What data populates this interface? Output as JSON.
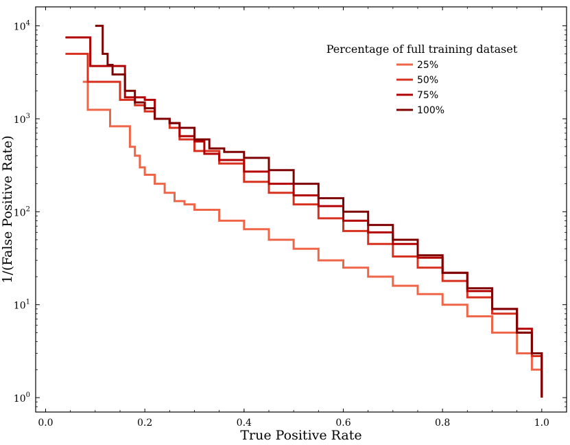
{
  "chart_data": {
    "type": "line",
    "title": "",
    "xlabel": "True Positive Rate",
    "ylabel": "1/(False Positive Rate)",
    "xlim": [
      -0.02,
      1.05
    ],
    "ylim": [
      0.7,
      16000
    ],
    "yscale": "log",
    "grid": false,
    "legend_title": "Percentage of full training dataset",
    "legend_position": "upper-right",
    "x_ticks": [
      0.0,
      0.2,
      0.4,
      0.6,
      0.8,
      1.0
    ],
    "x_tick_labels": [
      "0.0",
      "0.2",
      "0.4",
      "0.6",
      "0.8",
      "1.0"
    ],
    "y_ticks": [
      1,
      10,
      100,
      1000,
      10000
    ],
    "y_tick_labels": [
      {
        "base": "10",
        "exp": "0"
      },
      {
        "base": "10",
        "exp": "1"
      },
      {
        "base": "10",
        "exp": "2"
      },
      {
        "base": "10",
        "exp": "3"
      },
      {
        "base": "10",
        "exp": "4"
      }
    ],
    "series": [
      {
        "name": "25%",
        "color": "#ef6548",
        "x": [
          0.075,
          0.085,
          0.085,
          0.13,
          0.13,
          0.16,
          0.17,
          0.18,
          0.19,
          0.2,
          0.22,
          0.24,
          0.26,
          0.28,
          0.3,
          0.35,
          0.4,
          0.45,
          0.5,
          0.55,
          0.6,
          0.65,
          0.7,
          0.75,
          0.8,
          0.85,
          0.9,
          0.95,
          0.98,
          1.0
        ],
        "y": [
          2500,
          2500,
          1250,
          1250,
          830,
          830,
          500,
          400,
          300,
          250,
          200,
          160,
          130,
          120,
          105,
          80,
          65,
          50,
          40,
          30,
          25,
          20,
          16,
          13,
          10,
          7.5,
          5,
          3,
          2,
          1
        ]
      },
      {
        "name": "50%",
        "color": "#d7301f",
        "x": [
          0.04,
          0.085,
          0.085,
          0.15,
          0.15,
          0.18,
          0.2,
          0.22,
          0.25,
          0.27,
          0.3,
          0.35,
          0.4,
          0.45,
          0.5,
          0.55,
          0.6,
          0.65,
          0.7,
          0.75,
          0.8,
          0.85,
          0.9,
          0.95,
          0.98,
          1.0
        ],
        "y": [
          5000,
          5000,
          2500,
          2500,
          1600,
          1400,
          1200,
          1000,
          800,
          600,
          450,
          330,
          210,
          160,
          120,
          85,
          62,
          45,
          33,
          25,
          18,
          12,
          8,
          5,
          2.8,
          1
        ]
      },
      {
        "name": "75%",
        "color": "#b30000",
        "x": [
          0.04,
          0.09,
          0.09,
          0.15,
          0.16,
          0.2,
          0.22,
          0.25,
          0.27,
          0.3,
          0.32,
          0.35,
          0.4,
          0.45,
          0.5,
          0.55,
          0.6,
          0.65,
          0.7,
          0.75,
          0.8,
          0.85,
          0.9,
          0.95,
          0.98,
          1.0
        ],
        "y": [
          7500,
          7500,
          3700,
          3700,
          1700,
          1600,
          1000,
          900,
          650,
          570,
          420,
          360,
          270,
          200,
          150,
          115,
          80,
          60,
          45,
          32,
          22,
          14,
          9,
          5.5,
          3,
          1
        ]
      },
      {
        "name": "100%",
        "color": "#7f0000",
        "x": [
          0.1,
          0.11,
          0.115,
          0.125,
          0.135,
          0.16,
          0.18,
          0.2,
          0.22,
          0.25,
          0.27,
          0.3,
          0.33,
          0.36,
          0.4,
          0.45,
          0.5,
          0.55,
          0.6,
          0.65,
          0.7,
          0.75,
          0.8,
          0.85,
          0.9,
          0.95,
          0.98,
          1.0
        ],
        "y": [
          10000,
          10000,
          5000,
          3800,
          3000,
          2000,
          1500,
          1300,
          1000,
          900,
          800,
          600,
          480,
          440,
          380,
          280,
          200,
          140,
          100,
          72,
          50,
          34,
          22,
          15,
          9,
          5,
          3,
          1
        ]
      }
    ]
  }
}
